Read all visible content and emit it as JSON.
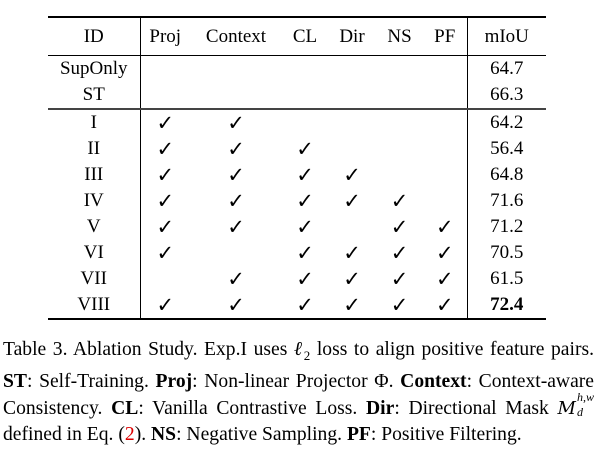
{
  "table": {
    "headers": [
      "ID",
      "Proj",
      "Context",
      "CL",
      "Dir",
      "NS",
      "PF",
      "mIoU"
    ],
    "baselines": [
      {
        "id": "SupOnly",
        "miou": "64.7"
      },
      {
        "id": "ST",
        "miou": "66.3"
      }
    ],
    "rows": [
      {
        "id": "I",
        "checks": [
          1,
          1,
          0,
          0,
          0,
          0
        ],
        "miou": "64.2",
        "bold": false
      },
      {
        "id": "II",
        "checks": [
          1,
          1,
          1,
          0,
          0,
          0
        ],
        "miou": "56.4",
        "bold": false
      },
      {
        "id": "III",
        "checks": [
          1,
          1,
          1,
          1,
          0,
          0
        ],
        "miou": "64.8",
        "bold": false
      },
      {
        "id": "IV",
        "checks": [
          1,
          1,
          1,
          1,
          1,
          0
        ],
        "miou": "71.6",
        "bold": false
      },
      {
        "id": "V",
        "checks": [
          1,
          1,
          1,
          0,
          1,
          1
        ],
        "miou": "71.2",
        "bold": false
      },
      {
        "id": "VI",
        "checks": [
          1,
          0,
          1,
          1,
          1,
          1
        ],
        "miou": "70.5",
        "bold": false
      },
      {
        "id": "VII",
        "checks": [
          0,
          1,
          1,
          1,
          1,
          1
        ],
        "miou": "61.5",
        "bold": false
      },
      {
        "id": "VIII",
        "checks": [
          1,
          1,
          1,
          1,
          1,
          1
        ],
        "miou": "72.4",
        "bold": true
      }
    ],
    "check_glyph": "✓"
  },
  "caption": {
    "p1": "Table 3. Ablation Study. Exp.I uses ",
    "l2": "ℓ",
    "l2sub": "2",
    "p2": " loss to align positive feature pairs. ",
    "st": "ST",
    "st_desc": ": Self-Training. ",
    "proj": "Proj",
    "proj_desc": ": Non-linear Projector Φ. ",
    "context": "Context",
    "context_desc": ": Context-aware Consistency. ",
    "cl": "CL",
    "cl_desc": ": Vanilla Contrastive Loss. ",
    "dir": "Dir",
    "dir_desc1": ": Directional Mask ",
    "mask": "M",
    "mask_sup": "h,w",
    "mask_sub": "d",
    "dir_desc2": " defined in Eq. (",
    "eq_ref": "2",
    "dir_desc3": "). ",
    "ns": "NS",
    "ns_desc": ": Negative Sampling. ",
    "pf": "PF",
    "pf_desc": ": Positive Filtering."
  }
}
